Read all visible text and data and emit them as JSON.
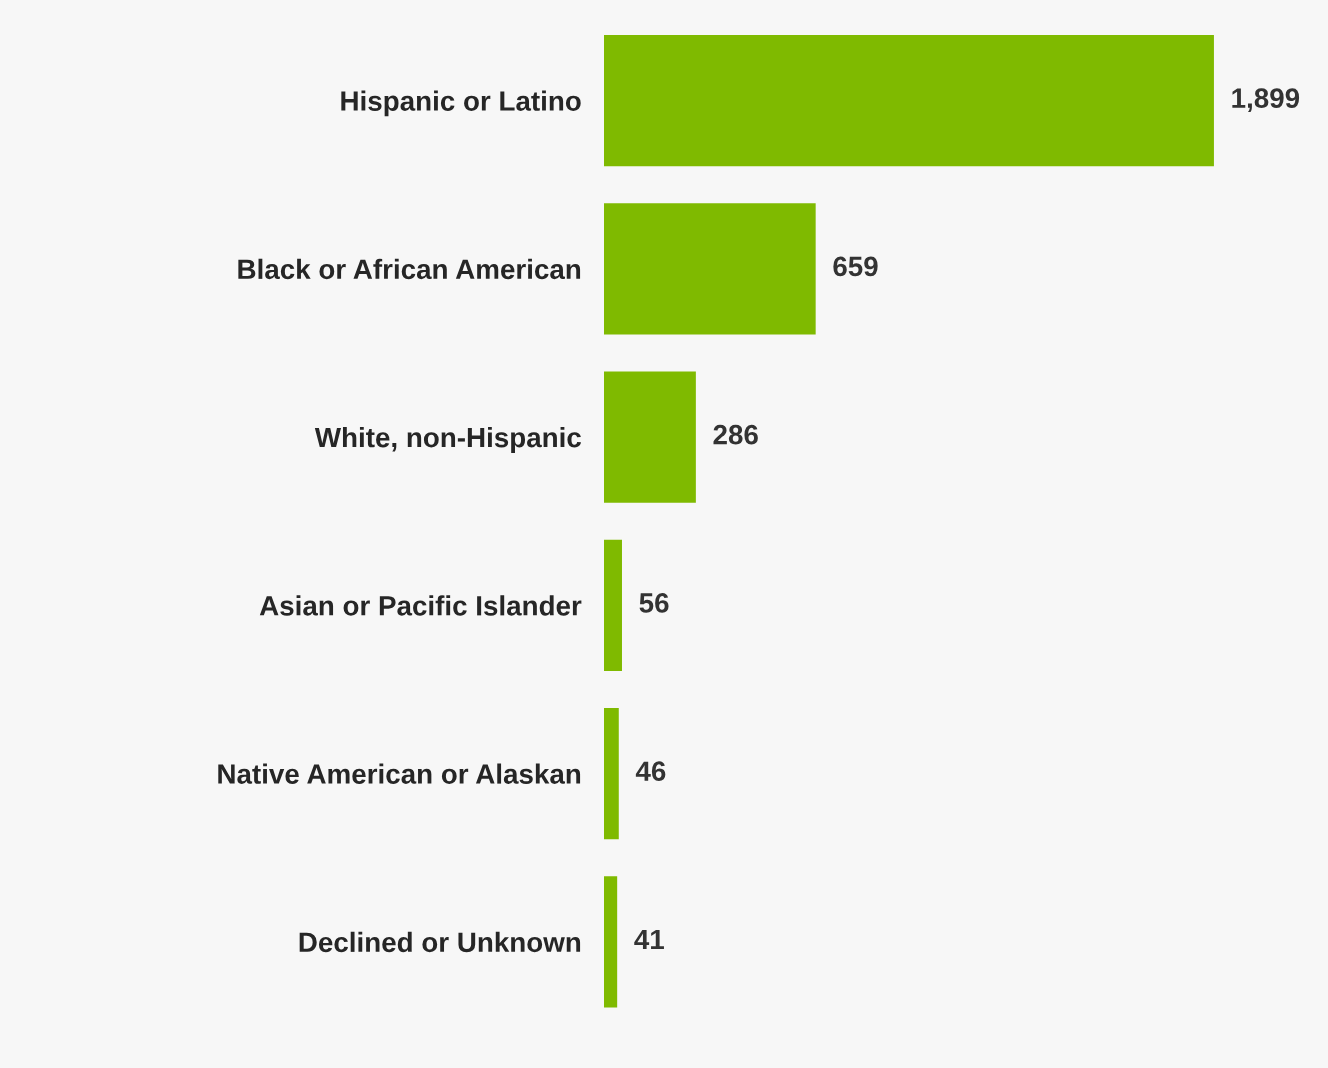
{
  "chart_data": {
    "type": "bar",
    "orientation": "horizontal",
    "categories": [
      "Hispanic or Latino",
      "Black or African American",
      "White, non-Hispanic",
      "Asian or Pacific Islander",
      "Native American or Alaskan",
      "Declined or Unknown"
    ],
    "values": [
      1899,
      659,
      286,
      56,
      46,
      41
    ],
    "color": "#7fba00",
    "value_labels": [
      "1,899",
      "659",
      "286",
      "56",
      "46",
      "41"
    ],
    "grid": false
  }
}
